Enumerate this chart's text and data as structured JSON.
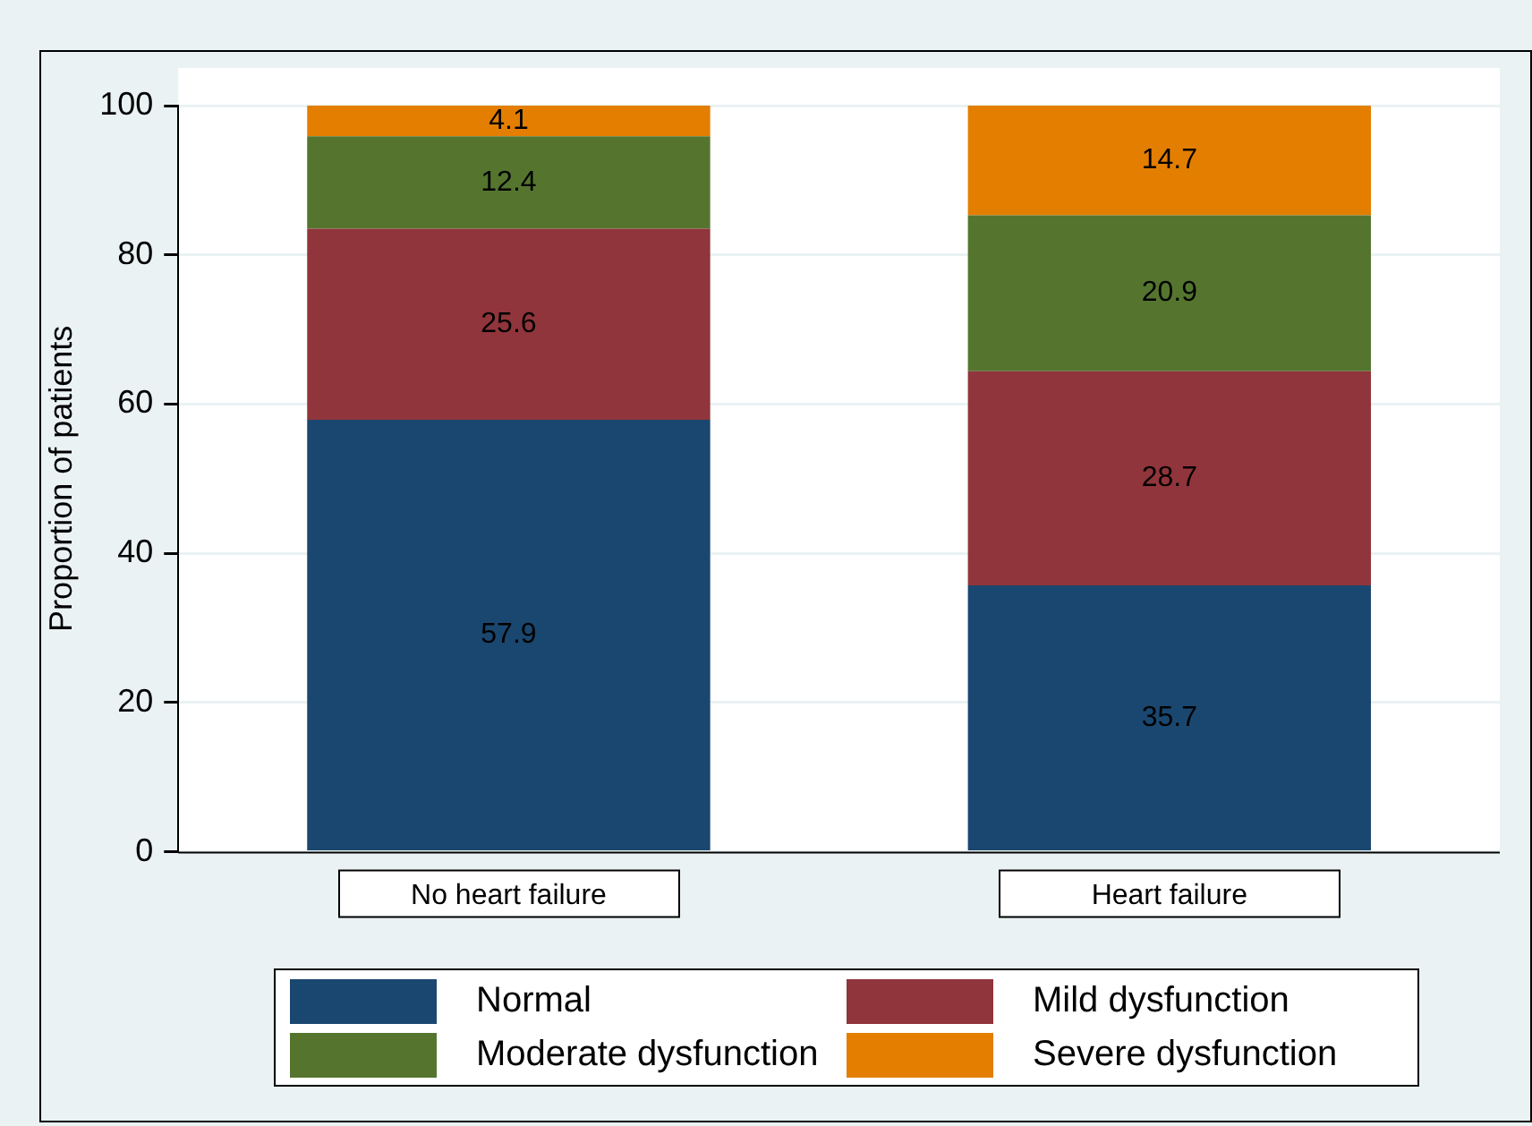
{
  "chart_data": {
    "type": "bar",
    "stacked": true,
    "ylabel": "Proportion of patients",
    "categories": [
      "No heart failure",
      "Heart failure"
    ],
    "series": [
      {
        "name": "Normal",
        "color": "#1a476f",
        "values": [
          57.9,
          35.7
        ]
      },
      {
        "name": "Mild dysfunction",
        "color": "#90353b",
        "values": [
          25.6,
          28.7
        ]
      },
      {
        "name": "Moderate dysfunction",
        "color": "#55752f",
        "values": [
          12.4,
          20.9
        ]
      },
      {
        "name": "Severe dysfunction",
        "color": "#e37e00",
        "values": [
          4.1,
          14.7
        ]
      }
    ],
    "ylim": [
      0,
      100
    ],
    "yticks": [
      0,
      20,
      40,
      60,
      80,
      100
    ],
    "grid": "y",
    "legend": "bottom",
    "data_labels": true
  }
}
